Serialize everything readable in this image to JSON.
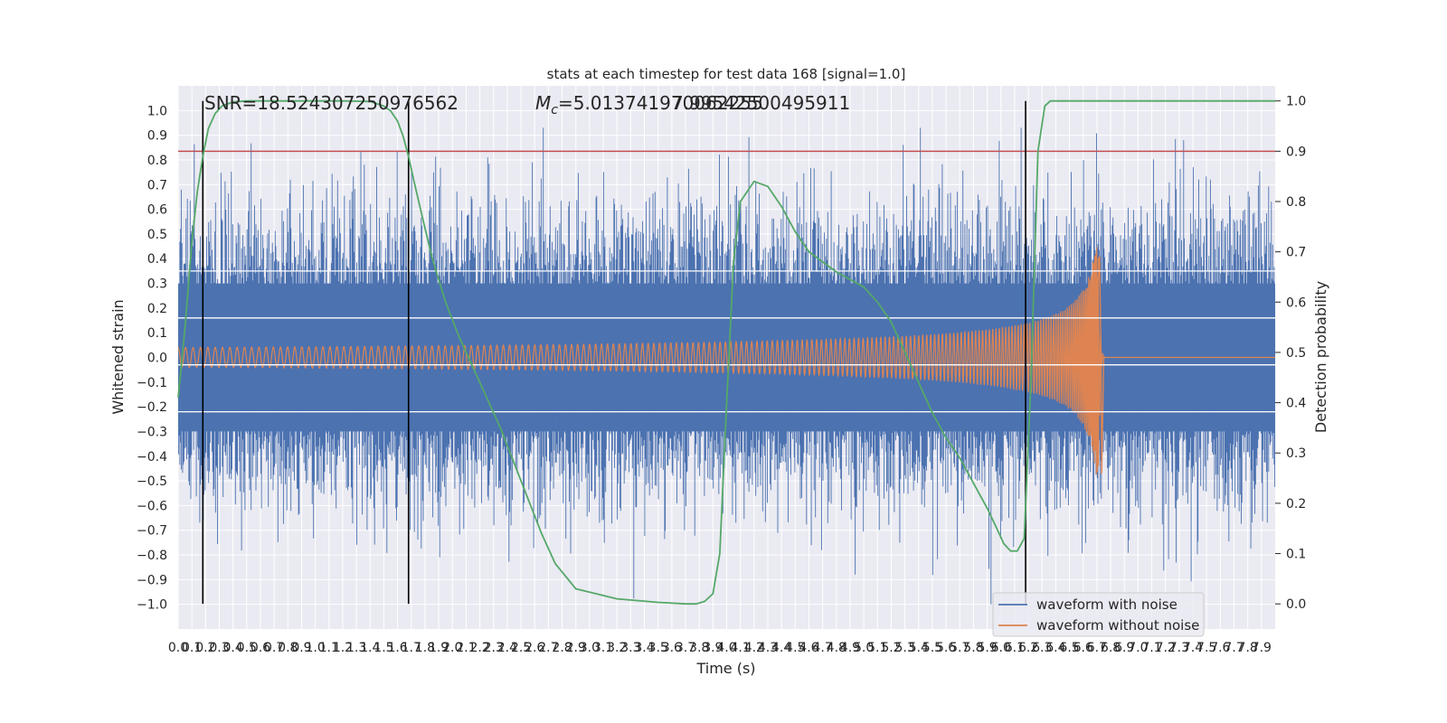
{
  "chart_data": {
    "type": "line",
    "title": "stats at each timestep for test data 168 [signal=1.0]",
    "xlabel": "Time (s)",
    "ylabel": "Whitened strain",
    "y2label": "Detection probability",
    "xlim": [
      0.0,
      8.0
    ],
    "ylim": [
      -1.1,
      1.1
    ],
    "y2lim": [
      -0.05,
      1.03
    ],
    "x_ticks": [
      0.0,
      0.1,
      0.2,
      0.3,
      0.4,
      0.5,
      0.6,
      0.7,
      0.8,
      0.9,
      1.0,
      1.1,
      1.2,
      1.3,
      1.4,
      1.5,
      1.6,
      1.7,
      1.8,
      1.9,
      2.0,
      2.1,
      2.2,
      2.3,
      2.4,
      2.5,
      2.6,
      2.7,
      2.8,
      2.9,
      3.0,
      3.1,
      3.2,
      3.3,
      3.4,
      3.5,
      3.6,
      3.7,
      3.8,
      3.9,
      4.0,
      4.1,
      4.2,
      4.3,
      4.4,
      4.5,
      4.6,
      4.7,
      4.8,
      4.9,
      5.0,
      5.1,
      5.2,
      5.3,
      5.4,
      5.5,
      5.6,
      5.7,
      5.8,
      5.9,
      6.0,
      6.1,
      6.2,
      6.3,
      6.4,
      6.5,
      6.6,
      6.7,
      6.8,
      6.9,
      7.0,
      7.1,
      7.2,
      7.3,
      7.4,
      7.5,
      7.6,
      7.7,
      7.8,
      7.9
    ],
    "y_ticks": [
      -1.0,
      -0.9,
      -0.8,
      -0.7,
      -0.6,
      -0.5,
      -0.4,
      -0.3,
      -0.2,
      -0.1,
      0.0,
      0.1,
      0.2,
      0.3,
      0.4,
      0.5,
      0.6,
      0.7,
      0.8,
      0.9,
      1.0
    ],
    "y2_ticks": [
      0.0,
      0.1,
      0.2,
      0.3,
      0.4,
      0.5,
      0.6,
      0.7,
      0.8,
      0.9,
      1.0
    ],
    "grid": true,
    "legend": "lower-right",
    "annotations": {
      "snr": "SNR=18.524307250976562",
      "mc": "=5.013741970062255",
      "mc_symbol": "M",
      "mc_subscript": "c",
      "overlap": "7.99542500495911"
    },
    "threshold": {
      "axis": "y2",
      "value": 0.9,
      "color": "#c44e52"
    },
    "vertical_markers": [
      0.18,
      1.68,
      6.18
    ],
    "series": [
      {
        "name": "waveform with noise",
        "axis": "y",
        "color": "#4c72b0",
        "envelope_typical": [
          -0.3,
          0.3
        ],
        "spikes_max": 0.93,
        "spikes_min": -1.0
      },
      {
        "name": "waveform without noise",
        "axis": "y",
        "color": "#dd8452",
        "chirp": {
          "t_merger": 6.72,
          "amp_start": 0.04,
          "peak": 0.41,
          "trough": -0.47
        }
      },
      {
        "axis": "y2",
        "color": "#55a868",
        "x": [
          0.0,
          0.05,
          0.1,
          0.14,
          0.18,
          0.22,
          0.27,
          0.32,
          0.4,
          0.5,
          0.6,
          0.8,
          1.0,
          1.2,
          1.4,
          1.5,
          1.55,
          1.6,
          1.64,
          1.68,
          1.72,
          1.78,
          1.85,
          1.95,
          2.05,
          2.15,
          2.25,
          2.35,
          2.45,
          2.55,
          2.65,
          2.75,
          2.9,
          3.2,
          3.5,
          3.7,
          3.78,
          3.84,
          3.9,
          3.95,
          4.0,
          4.05,
          4.1,
          4.2,
          4.3,
          4.4,
          4.5,
          4.6,
          4.8,
          5.0,
          5.1,
          5.2,
          5.3,
          5.4,
          5.5,
          5.6,
          5.7,
          5.8,
          5.9,
          5.97,
          6.02,
          6.07,
          6.12,
          6.17,
          6.22,
          6.27,
          6.32,
          6.36,
          6.42,
          6.5,
          6.7,
          7.0,
          7.5,
          8.0
        ],
        "y": [
          0.41,
          0.55,
          0.72,
          0.82,
          0.89,
          0.945,
          0.975,
          0.99,
          0.998,
          1.0,
          1.0,
          1.0,
          1.0,
          1.0,
          0.999,
          0.99,
          0.98,
          0.96,
          0.93,
          0.89,
          0.84,
          0.77,
          0.69,
          0.6,
          0.53,
          0.47,
          0.41,
          0.35,
          0.28,
          0.21,
          0.14,
          0.08,
          0.03,
          0.01,
          0.003,
          0.0,
          0.0,
          0.005,
          0.02,
          0.1,
          0.4,
          0.68,
          0.8,
          0.84,
          0.83,
          0.79,
          0.74,
          0.7,
          0.66,
          0.63,
          0.6,
          0.56,
          0.5,
          0.44,
          0.38,
          0.33,
          0.29,
          0.24,
          0.19,
          0.15,
          0.12,
          0.105,
          0.105,
          0.13,
          0.45,
          0.9,
          0.99,
          1.0,
          1.0,
          1.0,
          1.0,
          1.0,
          1.0,
          1.0
        ]
      }
    ]
  }
}
